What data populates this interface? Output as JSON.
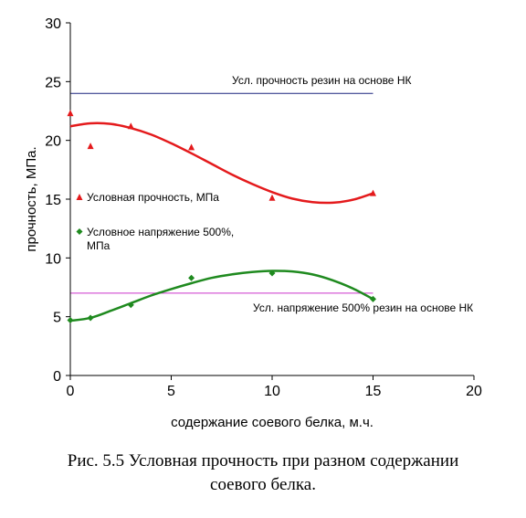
{
  "chart_data": {
    "type": "scatter",
    "xlabel": "содержание соевого белка, м.ч.",
    "ylabel": "прочность, МПа.",
    "xlim": [
      0,
      20
    ],
    "ylim": [
      0,
      30
    ],
    "xticks": [
      0,
      5,
      10,
      15,
      20
    ],
    "yticks": [
      0,
      5,
      10,
      15,
      20,
      25,
      30
    ],
    "grid": false,
    "legend_position": "left, inside plot",
    "series": [
      {
        "name": "Условная прочность, МПа",
        "marker": "triangle",
        "color": "#e41a1c",
        "x": [
          0,
          1,
          3,
          6,
          10,
          15
        ],
        "y": [
          22.3,
          19.5,
          21.2,
          19.4,
          15.1,
          15.5
        ],
        "trend": {
          "x": [
            0,
            1,
            2,
            3,
            4,
            5,
            6,
            7,
            8,
            9,
            10,
            11,
            12,
            13,
            14,
            15
          ],
          "y": [
            21.2,
            21.45,
            21.4,
            21.05,
            20.5,
            19.75,
            18.9,
            18.0,
            17.1,
            16.3,
            15.6,
            15.05,
            14.75,
            14.7,
            14.95,
            15.5
          ]
        }
      },
      {
        "name": "Условное напряжение 500%, МПа",
        "marker": "diamond",
        "color": "#1f8a1f",
        "x": [
          0,
          1,
          3,
          6,
          10,
          15
        ],
        "y": [
          4.7,
          4.9,
          6.0,
          8.3,
          8.7,
          6.5
        ],
        "trend": {
          "x": [
            0,
            1,
            2,
            3,
            4,
            5,
            6,
            7,
            8,
            9,
            10,
            11,
            12,
            13,
            14,
            15
          ],
          "y": [
            4.65,
            4.9,
            5.5,
            6.15,
            6.8,
            7.35,
            7.85,
            8.3,
            8.6,
            8.8,
            8.9,
            8.85,
            8.6,
            8.1,
            7.4,
            6.5
          ]
        }
      }
    ],
    "reference_lines": [
      {
        "label": "Усл. прочность резин на основе НК",
        "y": 24,
        "x_range": [
          0,
          15
        ],
        "color": "#1a237e"
      },
      {
        "label": "Усл. напряжение 500% резин на основе НК",
        "y": 7,
        "x_range": [
          0,
          15
        ],
        "color": "#cc33cc"
      }
    ]
  },
  "caption": {
    "line1": "Рис. 5.5 Условная прочность при разном содержании",
    "line2": "соевого белка."
  }
}
